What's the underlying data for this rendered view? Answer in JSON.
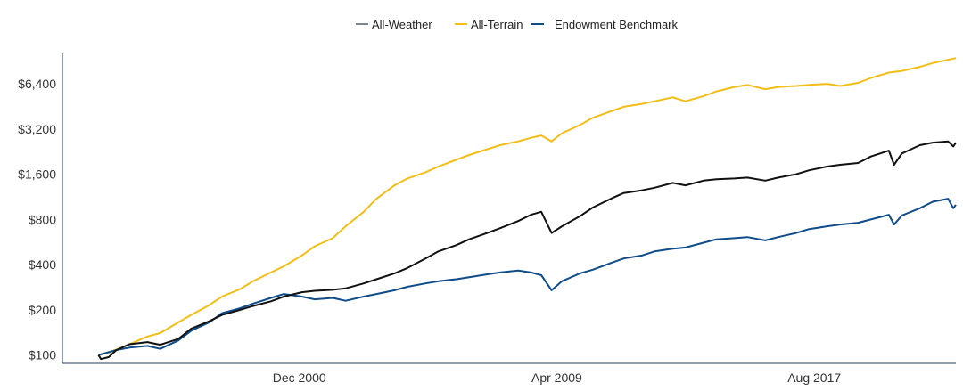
{
  "chart_data": {
    "type": "line",
    "title": "",
    "xlabel": "",
    "ylabel": "",
    "y_scale": "log2",
    "ylim": [
      88,
      10200
    ],
    "xlim": [
      "1993-04",
      "2022-03"
    ],
    "x_tick_labels": [
      "Dec 2000",
      "Apr 2009",
      "Aug 2017"
    ],
    "x_tick_dates": [
      "2000-12",
      "2009-04",
      "2017-08"
    ],
    "y_tick_values": [
      100,
      200,
      400,
      800,
      1600,
      3200,
      6400
    ],
    "y_tick_labels": [
      "$100",
      "$200",
      "$400",
      "$800",
      "$1,600",
      "$3,200",
      "$6,400"
    ],
    "grid": false,
    "legend_position": "top-center",
    "series": [
      {
        "name": "All-Weather",
        "color": "#111111",
        "legend_color": "#7d8590",
        "points": [
          [
            "1994-06",
            100
          ],
          [
            "1994-07",
            94
          ],
          [
            "1994-10",
            97
          ],
          [
            "1995-01",
            108
          ],
          [
            "1995-06",
            118
          ],
          [
            "1996-01",
            122
          ],
          [
            "1996-06",
            117
          ],
          [
            "1997-01",
            128
          ],
          [
            "1997-06",
            150
          ],
          [
            "1998-01",
            168
          ],
          [
            "1998-06",
            185
          ],
          [
            "1999-01",
            200
          ],
          [
            "1999-06",
            212
          ],
          [
            "2000-01",
            228
          ],
          [
            "2000-06",
            245
          ],
          [
            "2001-01",
            262
          ],
          [
            "2001-06",
            268
          ],
          [
            "2002-01",
            272
          ],
          [
            "2002-06",
            278
          ],
          [
            "2003-01",
            300
          ],
          [
            "2003-06",
            320
          ],
          [
            "2004-01",
            350
          ],
          [
            "2004-06",
            380
          ],
          [
            "2005-01",
            440
          ],
          [
            "2005-06",
            490
          ],
          [
            "2006-01",
            540
          ],
          [
            "2006-06",
            590
          ],
          [
            "2007-01",
            650
          ],
          [
            "2007-06",
            700
          ],
          [
            "2008-01",
            780
          ],
          [
            "2008-06",
            860
          ],
          [
            "2008-10",
            900
          ],
          [
            "2009-02",
            650
          ],
          [
            "2009-06",
            720
          ],
          [
            "2010-01",
            840
          ],
          [
            "2010-06",
            960
          ],
          [
            "2011-01",
            1100
          ],
          [
            "2011-06",
            1200
          ],
          [
            "2012-01",
            1250
          ],
          [
            "2012-06",
            1300
          ],
          [
            "2013-01",
            1400
          ],
          [
            "2013-06",
            1350
          ],
          [
            "2014-01",
            1450
          ],
          [
            "2014-06",
            1480
          ],
          [
            "2015-01",
            1500
          ],
          [
            "2015-06",
            1520
          ],
          [
            "2016-01",
            1450
          ],
          [
            "2016-06",
            1520
          ],
          [
            "2017-01",
            1600
          ],
          [
            "2017-06",
            1700
          ],
          [
            "2018-01",
            1800
          ],
          [
            "2018-06",
            1850
          ],
          [
            "2019-01",
            1900
          ],
          [
            "2019-06",
            2100
          ],
          [
            "2020-01",
            2300
          ],
          [
            "2020-03",
            1850
          ],
          [
            "2020-06",
            2200
          ],
          [
            "2021-01",
            2500
          ],
          [
            "2021-06",
            2600
          ],
          [
            "2021-12",
            2650
          ],
          [
            "2022-02",
            2450
          ],
          [
            "2022-03",
            2600
          ]
        ]
      },
      {
        "name": "All-Terrain",
        "color": "#f2be16",
        "points": [
          [
            "1994-06",
            100
          ],
          [
            "1994-10",
            104
          ],
          [
            "1995-06",
            118
          ],
          [
            "1996-01",
            133
          ],
          [
            "1996-06",
            140
          ],
          [
            "1997-01",
            165
          ],
          [
            "1997-06",
            185
          ],
          [
            "1998-01",
            215
          ],
          [
            "1998-06",
            245
          ],
          [
            "1999-01",
            275
          ],
          [
            "1999-06",
            310
          ],
          [
            "2000-01",
            355
          ],
          [
            "2000-06",
            390
          ],
          [
            "2001-01",
            460
          ],
          [
            "2001-06",
            530
          ],
          [
            "2002-01",
            600
          ],
          [
            "2002-06",
            720
          ],
          [
            "2003-01",
            900
          ],
          [
            "2003-06",
            1100
          ],
          [
            "2004-01",
            1350
          ],
          [
            "2004-06",
            1500
          ],
          [
            "2005-01",
            1650
          ],
          [
            "2005-06",
            1800
          ],
          [
            "2006-01",
            2000
          ],
          [
            "2006-06",
            2150
          ],
          [
            "2007-01",
            2350
          ],
          [
            "2007-06",
            2500
          ],
          [
            "2008-01",
            2650
          ],
          [
            "2008-06",
            2800
          ],
          [
            "2008-10",
            2900
          ],
          [
            "2009-02",
            2650
          ],
          [
            "2009-06",
            3000
          ],
          [
            "2010-01",
            3400
          ],
          [
            "2010-06",
            3800
          ],
          [
            "2011-01",
            4200
          ],
          [
            "2011-06",
            4500
          ],
          [
            "2012-01",
            4700
          ],
          [
            "2012-06",
            4900
          ],
          [
            "2013-01",
            5200
          ],
          [
            "2013-06",
            4900
          ],
          [
            "2014-01",
            5300
          ],
          [
            "2014-06",
            5700
          ],
          [
            "2015-01",
            6100
          ],
          [
            "2015-06",
            6300
          ],
          [
            "2016-01",
            5900
          ],
          [
            "2016-06",
            6100
          ],
          [
            "2017-01",
            6200
          ],
          [
            "2017-06",
            6300
          ],
          [
            "2018-01",
            6400
          ],
          [
            "2018-06",
            6200
          ],
          [
            "2019-01",
            6500
          ],
          [
            "2019-06",
            7000
          ],
          [
            "2020-01",
            7600
          ],
          [
            "2020-06",
            7800
          ],
          [
            "2021-01",
            8300
          ],
          [
            "2021-06",
            8800
          ],
          [
            "2022-03",
            9500
          ]
        ]
      },
      {
        "name": "Endowment Benchmark",
        "color": "#0f4c8a",
        "points": [
          [
            "1994-06",
            100
          ],
          [
            "1995-01",
            108
          ],
          [
            "1995-06",
            112
          ],
          [
            "1996-01",
            115
          ],
          [
            "1996-06",
            110
          ],
          [
            "1997-01",
            125
          ],
          [
            "1997-06",
            145
          ],
          [
            "1998-01",
            165
          ],
          [
            "1998-06",
            190
          ],
          [
            "1999-01",
            205
          ],
          [
            "1999-06",
            220
          ],
          [
            "2000-01",
            240
          ],
          [
            "2000-06",
            255
          ],
          [
            "2001-01",
            245
          ],
          [
            "2001-06",
            235
          ],
          [
            "2002-01",
            240
          ],
          [
            "2002-06",
            230
          ],
          [
            "2003-01",
            245
          ],
          [
            "2003-06",
            255
          ],
          [
            "2004-01",
            270
          ],
          [
            "2004-06",
            285
          ],
          [
            "2005-01",
            300
          ],
          [
            "2005-06",
            310
          ],
          [
            "2006-01",
            320
          ],
          [
            "2006-06",
            330
          ],
          [
            "2007-01",
            345
          ],
          [
            "2007-06",
            355
          ],
          [
            "2008-01",
            365
          ],
          [
            "2008-06",
            355
          ],
          [
            "2008-10",
            340
          ],
          [
            "2009-02",
            270
          ],
          [
            "2009-06",
            310
          ],
          [
            "2010-01",
            350
          ],
          [
            "2010-06",
            370
          ],
          [
            "2011-01",
            410
          ],
          [
            "2011-06",
            440
          ],
          [
            "2012-01",
            460
          ],
          [
            "2012-06",
            490
          ],
          [
            "2013-01",
            510
          ],
          [
            "2013-06",
            520
          ],
          [
            "2014-01",
            560
          ],
          [
            "2014-06",
            590
          ],
          [
            "2015-01",
            600
          ],
          [
            "2015-06",
            610
          ],
          [
            "2016-01",
            580
          ],
          [
            "2016-06",
            610
          ],
          [
            "2017-01",
            650
          ],
          [
            "2017-06",
            690
          ],
          [
            "2018-01",
            720
          ],
          [
            "2018-06",
            740
          ],
          [
            "2019-01",
            760
          ],
          [
            "2019-06",
            800
          ],
          [
            "2020-01",
            860
          ],
          [
            "2020-03",
            740
          ],
          [
            "2020-06",
            850
          ],
          [
            "2021-01",
            950
          ],
          [
            "2021-06",
            1050
          ],
          [
            "2021-12",
            1100
          ],
          [
            "2022-02",
            950
          ],
          [
            "2022-03",
            1000
          ]
        ]
      }
    ]
  }
}
